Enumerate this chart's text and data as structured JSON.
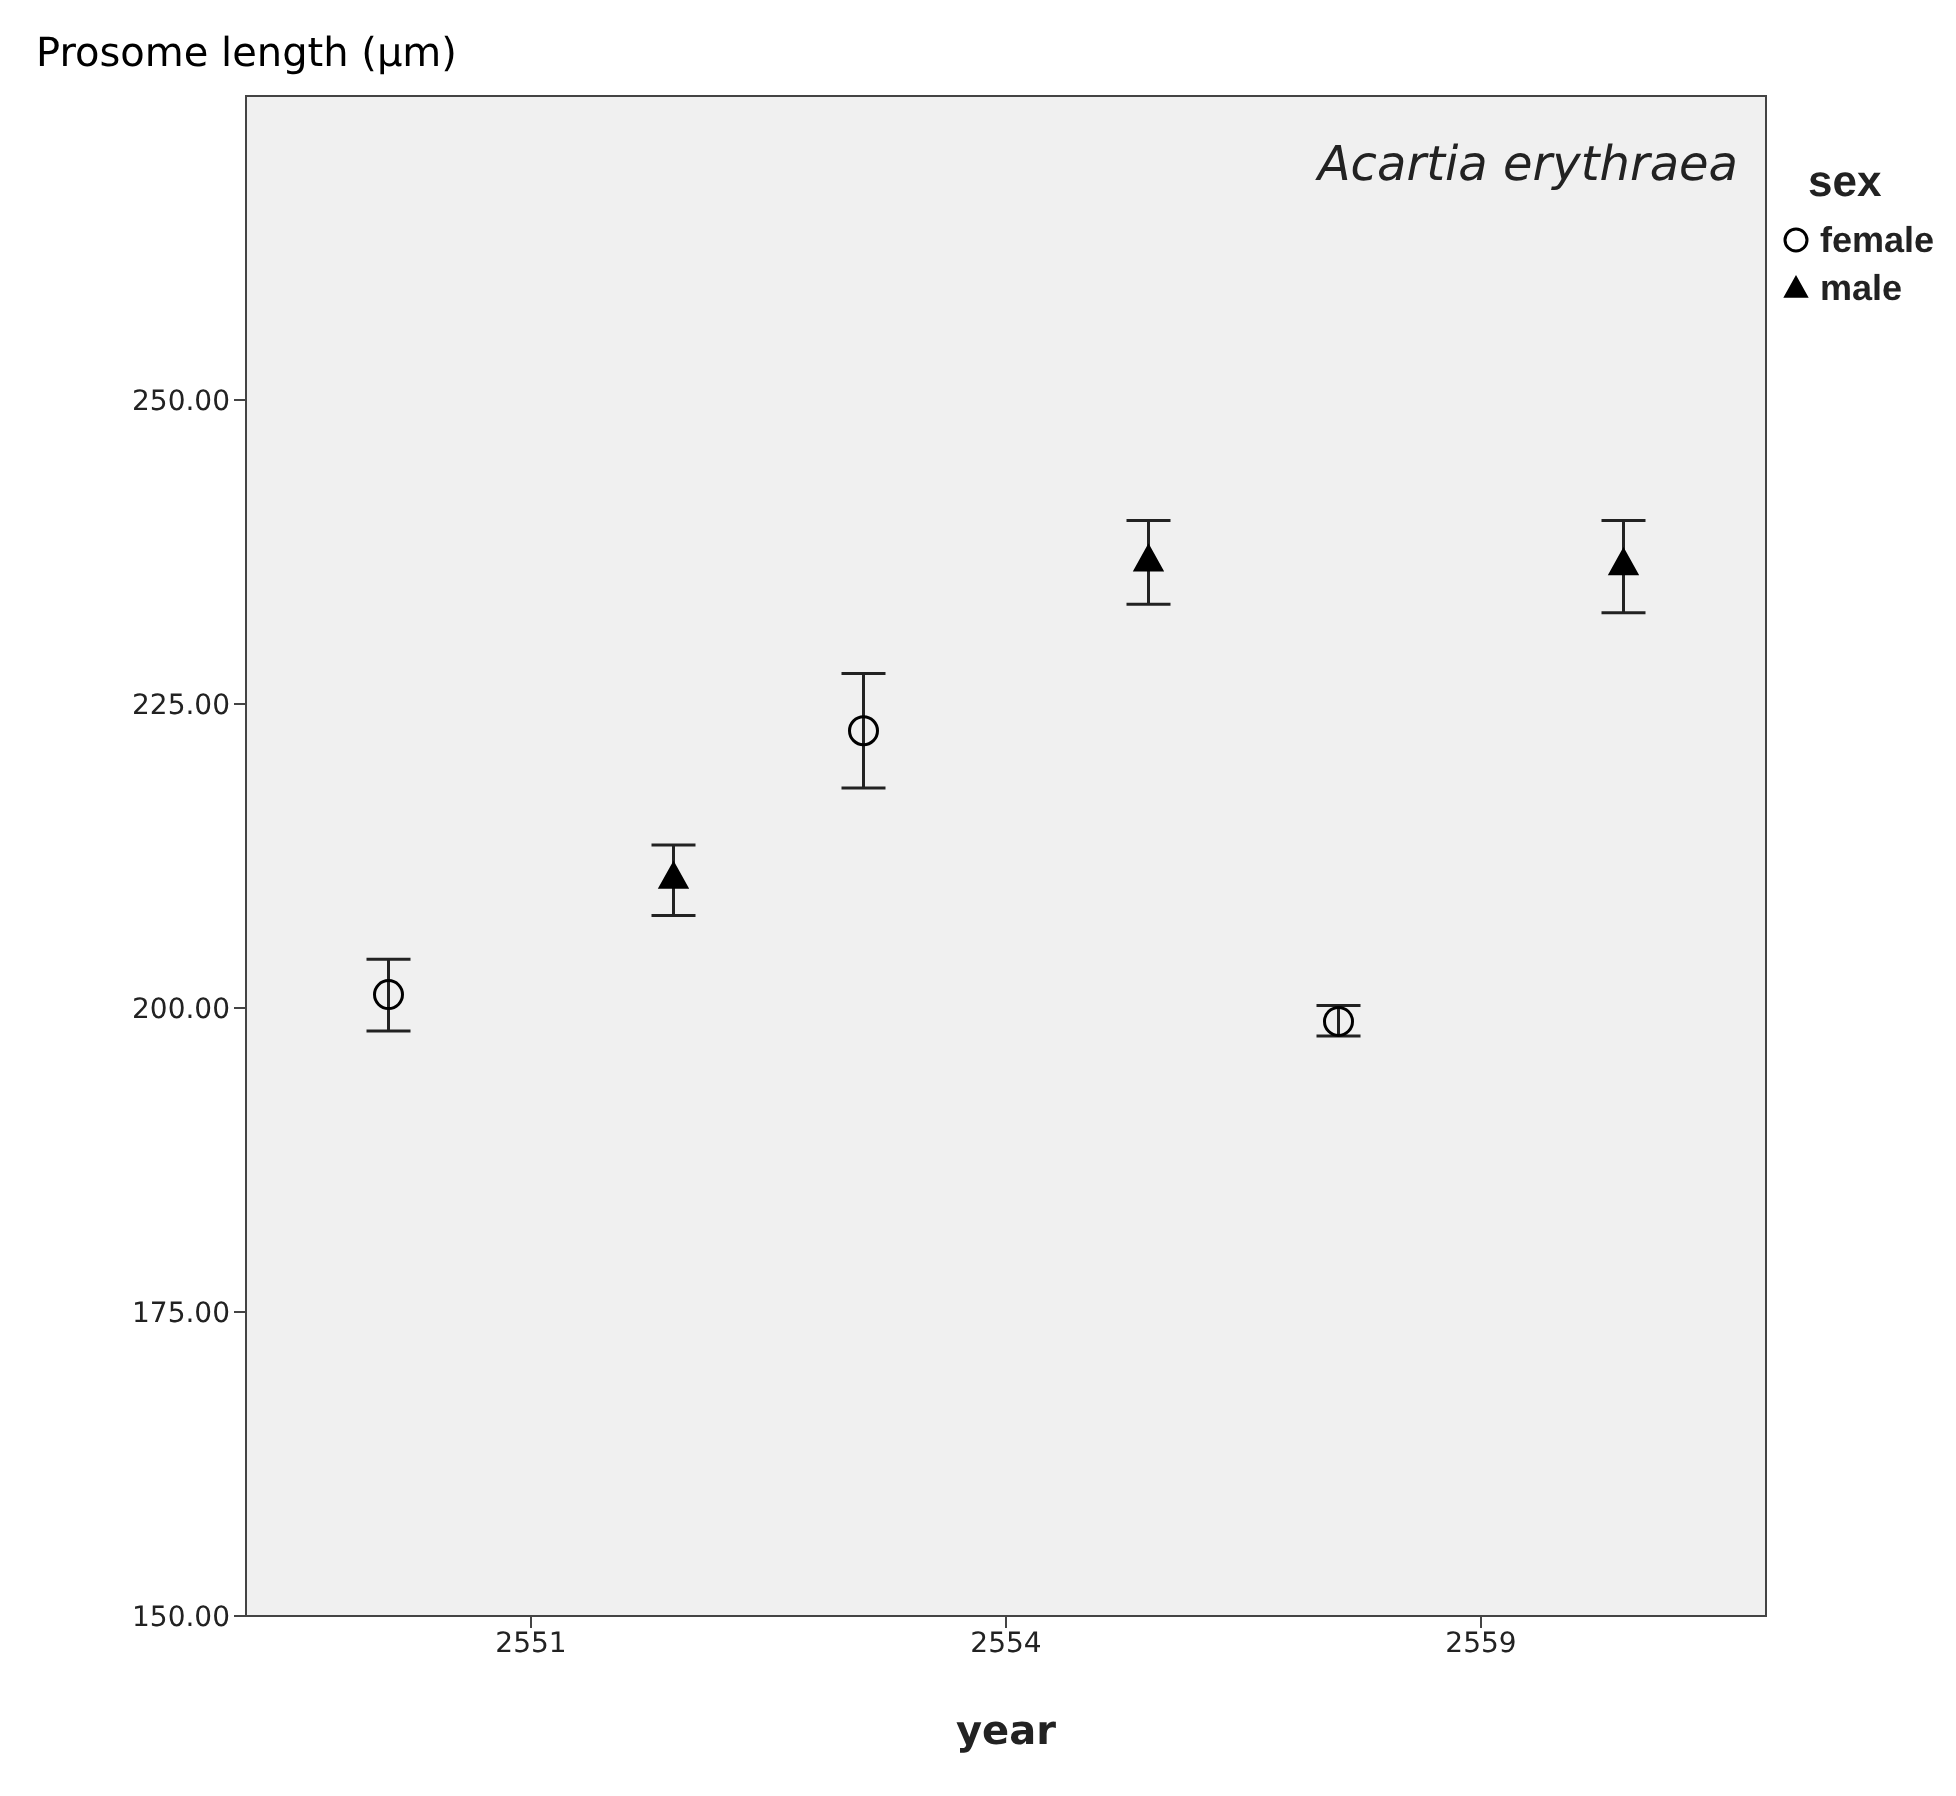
{
  "chart_data": {
    "type": "scatter",
    "ylabel": "Prosome length (µm)",
    "xlabel": "year",
    "legend_title": "sex",
    "annotations": [
      "Acartia erythraea"
    ],
    "categories": [
      "2551",
      "2554",
      "2559"
    ],
    "series": [
      {
        "name": "female",
        "color": "#000000",
        "marker": "circle",
        "values": [
          201.1,
          222.8,
          198.9
        ],
        "errors": [
          [
            198.1,
            204.0
          ],
          [
            218.1,
            227.5
          ],
          [
            197.7,
            200.2
          ]
        ]
      },
      {
        "name": "male",
        "color": "#000000",
        "marker": "triangle",
        "values": [
          210.8,
          236.9,
          236.6
        ],
        "errors": [
          [
            207.6,
            213.4
          ],
          [
            233.2,
            240.1
          ],
          [
            232.5,
            240.1
          ]
        ]
      }
    ],
    "ylim": [
      150,
      275
    ],
    "yticks": [
      {
        "value": 150,
        "label": "150.00"
      },
      {
        "value": 175,
        "label": "175.00"
      },
      {
        "value": 200,
        "label": "200.00"
      },
      {
        "value": 225,
        "label": "225.00"
      },
      {
        "value": 250,
        "label": "250.00"
      }
    ],
    "legend": "top right"
  }
}
